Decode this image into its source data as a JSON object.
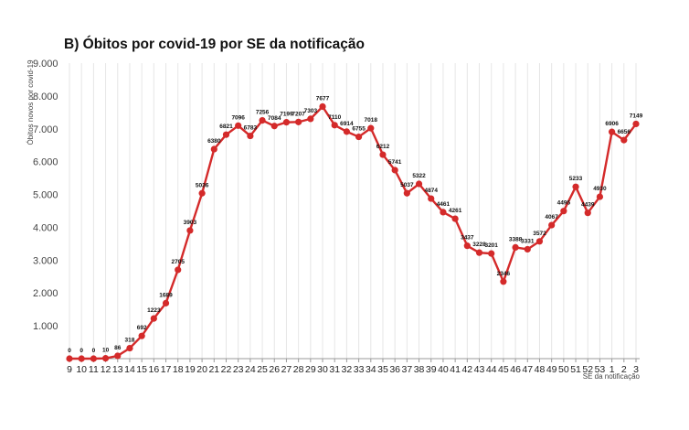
{
  "chart_data": {
    "type": "line",
    "title": "B) Óbitos por covid-19 por SE da notificação",
    "xlabel": "SE da notificação",
    "ylabel": "Óbitos novos por covid-19",
    "ylim": [
      0,
      9000
    ],
    "yticks": [
      "",
      "1.000",
      "2.000",
      "3.000",
      "4.000",
      "5.000",
      "6.000",
      "7.000",
      "8.000",
      "9.000"
    ],
    "grid": true,
    "color": "#d42a2a",
    "categories": [
      "9",
      "10",
      "11",
      "12",
      "13",
      "14",
      "15",
      "16",
      "17",
      "18",
      "19",
      "20",
      "21",
      "22",
      "23",
      "24",
      "25",
      "26",
      "27",
      "28",
      "29",
      "30",
      "31",
      "32",
      "33",
      "34",
      "35",
      "36",
      "37",
      "38",
      "39",
      "40",
      "41",
      "42",
      "43",
      "44",
      "45",
      "46",
      "47",
      "48",
      "49",
      "50",
      "51",
      "52",
      "53",
      "1",
      "2",
      "3"
    ],
    "values": [
      0,
      0,
      0,
      10,
      86,
      318,
      692,
      1223,
      1689,
      2705,
      3903,
      5036,
      6380,
      6821,
      7096,
      6783,
      7256,
      7084,
      7199,
      7207,
      7303,
      7677,
      7110,
      6914,
      6755,
      7018,
      6212,
      5741,
      5037,
      5322,
      4874,
      4461,
      4261,
      3437,
      3228,
      3201,
      2346,
      3388,
      3331,
      3572,
      4067,
      4495,
      5233,
      4439,
      4930,
      6906,
      6656,
      7149
    ],
    "point_labels": [
      "0",
      "0",
      "0",
      "10",
      "86",
      "318",
      "692",
      "1223",
      "1689",
      "2705",
      "3903",
      "5036",
      "6380",
      "6821",
      "7096",
      "6783",
      "7256",
      "7084",
      "7199",
      "7207",
      "7303",
      "7677",
      "7110",
      "6914",
      "6755",
      "7018",
      "6212",
      "5741",
      "5037",
      "5322",
      "4874",
      "4461",
      "4261",
      "3437",
      "3228",
      "3201",
      "2346",
      "3388",
      "3331",
      "3572",
      "4067",
      "4495",
      "5233",
      "4439",
      "4930",
      "6906",
      "6656",
      "7149"
    ]
  }
}
